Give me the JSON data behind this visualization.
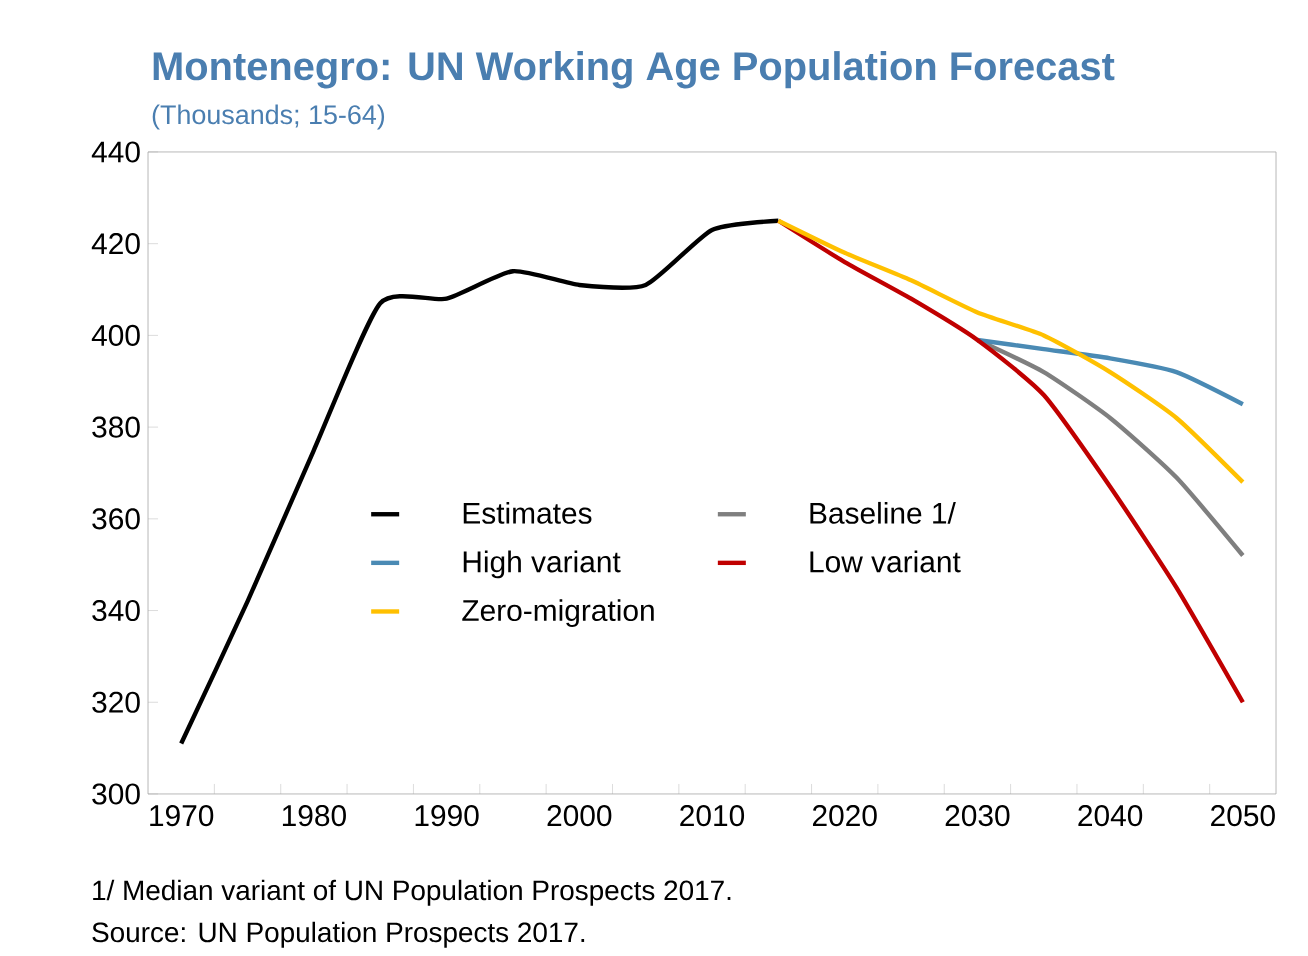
{
  "chart_data": {
    "type": "line",
    "title": "Montenegro: UN Working Age Population Forecast",
    "subtitle": "(Thousands; 15-64)",
    "x": [
      1970,
      1975,
      1980,
      1985,
      1990,
      1995,
      2000,
      2005,
      2010,
      2015
    ],
    "series": [
      {
        "name": "Estimates",
        "color": "#000000",
        "values": [
          311,
          342,
          375,
          407,
          408,
          414,
          411,
          411,
          423,
          425
        ]
      },
      {
        "name": "Baseline 1/",
        "color": "#7f7f7f",
        "x": [
          2030,
          2035,
          2040,
          2045,
          2050
        ],
        "values": [
          399,
          392,
          382,
          369,
          352
        ]
      },
      {
        "name": "High variant",
        "color": "#4a8ab4",
        "x": [
          2030,
          2035,
          2040,
          2045,
          2050
        ],
        "values": [
          399,
          397,
          395,
          392,
          385
        ]
      },
      {
        "name": "Low variant",
        "color": "#c00000",
        "x": [
          2015,
          2020,
          2025,
          2030,
          2035,
          2040,
          2045,
          2050
        ],
        "values": [
          425,
          416,
          408,
          399,
          387,
          367,
          345,
          320
        ]
      },
      {
        "name": "Zero-migration",
        "color": "#ffc000",
        "x": [
          2015,
          2020,
          2025,
          2030,
          2035,
          2040,
          2045,
          2050
        ],
        "values": [
          425,
          418,
          412,
          405,
          400,
          392,
          382,
          368
        ]
      }
    ],
    "xlim": [
      1967.5,
      2052.5
    ],
    "xticks": [
      1970,
      {
        "value": 1972.5,
        "label": null
      },
      1980,
      {
        "value": 1977.5,
        "label": null
      },
      1990,
      {
        "value": 1982.5,
        "label": null
      },
      2000,
      {
        "value": 1987.5,
        "label": null
      },
      2010,
      {
        "value": 1992.5,
        "label": null
      },
      2020,
      {
        "value": 1997.5,
        "label": null
      },
      2030,
      {
        "value": 2002.5,
        "label": null
      },
      2040,
      {
        "value": 2007.5,
        "label": null
      },
      2050,
      {
        "value": 2012.5,
        "label": null
      },
      {
        "value": 2017.5,
        "label": null
      },
      {
        "value": 2022.5,
        "label": null
      },
      {
        "value": 2027.5,
        "label": null
      },
      {
        "value": 2032.5,
        "label": null
      },
      {
        "value": 2037.5,
        "label": null
      },
      {
        "value": 2042.5,
        "label": null
      },
      {
        "value": 2047.5,
        "label": null
      }
    ],
    "ylim": [
      300,
      440
    ],
    "yticks": [
      300,
      320,
      340,
      360,
      380,
      400,
      420,
      440
    ],
    "legend": "center",
    "grid": false,
    "marker": "none",
    "line_style": "solid",
    "annotations": [
      "1/ Median variant of UN Population Prospects 2017.",
      "Source: UN Population Prospects 2017."
    ]
  }
}
